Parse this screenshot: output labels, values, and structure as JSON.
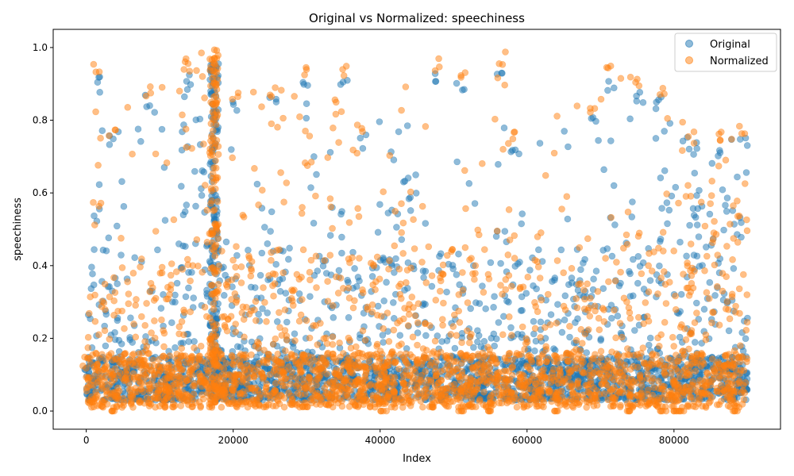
{
  "chart_data": {
    "type": "scatter",
    "title": "Original vs Normalized: speechiness",
    "xlabel": "Index",
    "ylabel": "speechiness",
    "xlim": [
      -4500,
      94500
    ],
    "ylim": [
      -0.05,
      1.05
    ],
    "xticks": [
      0,
      20000,
      40000,
      60000,
      80000
    ],
    "xtick_labels": [
      "0",
      "20000",
      "40000",
      "60000",
      "80000"
    ],
    "yticks": [
      0.0,
      0.2,
      0.4,
      0.6,
      0.8,
      1.0
    ],
    "ytick_labels": [
      "0.0",
      "0.2",
      "0.4",
      "0.6",
      "0.8",
      "1.0"
    ],
    "grid": false,
    "legend_position": "top-right",
    "n_points": 90000,
    "marker_alpha": 0.5,
    "series": [
      {
        "name": "Original",
        "color": "#1f77b4",
        "min": 0.022,
        "max": 0.965,
        "band_low": 0.03,
        "band_high": 0.15,
        "dense_regions": [
          [
            1000,
            2000
          ],
          [
            13000,
            18000
          ],
          [
            33000,
            35500
          ],
          [
            41000,
            44500
          ],
          [
            55500,
            57000
          ],
          [
            71000,
            72000
          ],
          [
            78000,
            79500
          ],
          [
            81000,
            89500
          ]
        ],
        "upper_envelope": [
          {
            "x": 0,
            "y": 0.14
          },
          {
            "x": 1500,
            "y": 0.92
          },
          {
            "x": 3500,
            "y": 0.76
          },
          {
            "x": 8500,
            "y": 0.87
          },
          {
            "x": 13800,
            "y": 0.93
          },
          {
            "x": 17500,
            "y": 0.965
          },
          {
            "x": 20300,
            "y": 0.86
          },
          {
            "x": 25300,
            "y": 0.87
          },
          {
            "x": 30000,
            "y": 0.91
          },
          {
            "x": 35000,
            "y": 0.91
          },
          {
            "x": 37500,
            "y": 0.76
          },
          {
            "x": 48000,
            "y": 0.94
          },
          {
            "x": 51000,
            "y": 0.91
          },
          {
            "x": 56500,
            "y": 0.95
          },
          {
            "x": 58000,
            "y": 0.75
          },
          {
            "x": 69000,
            "y": 0.83
          },
          {
            "x": 71300,
            "y": 0.92
          },
          {
            "x": 75000,
            "y": 0.89
          },
          {
            "x": 78200,
            "y": 0.87
          },
          {
            "x": 82500,
            "y": 0.74
          },
          {
            "x": 86500,
            "y": 0.74
          },
          {
            "x": 89500,
            "y": 0.76
          }
        ]
      },
      {
        "name": "Normalized",
        "color": "#ff7f0e",
        "min": 0.0,
        "max": 1.0,
        "band_low": 0.01,
        "band_high": 0.16,
        "dense_regions": [
          [
            1000,
            2000
          ],
          [
            13000,
            18000
          ],
          [
            33000,
            35500
          ],
          [
            41000,
            44500
          ],
          [
            55500,
            57000
          ],
          [
            71000,
            72000
          ],
          [
            78000,
            79500
          ],
          [
            81000,
            89500
          ]
        ],
        "upper_envelope": [
          {
            "x": 0,
            "y": 0.15
          },
          {
            "x": 1500,
            "y": 0.96
          },
          {
            "x": 3500,
            "y": 0.79
          },
          {
            "x": 8500,
            "y": 0.9
          },
          {
            "x": 13800,
            "y": 0.97
          },
          {
            "x": 17500,
            "y": 1.0
          },
          {
            "x": 20300,
            "y": 0.89
          },
          {
            "x": 25300,
            "y": 0.9
          },
          {
            "x": 30000,
            "y": 0.95
          },
          {
            "x": 35000,
            "y": 0.95
          },
          {
            "x": 37500,
            "y": 0.79
          },
          {
            "x": 48000,
            "y": 0.97
          },
          {
            "x": 51000,
            "y": 0.95
          },
          {
            "x": 56500,
            "y": 0.99
          },
          {
            "x": 58000,
            "y": 0.77
          },
          {
            "x": 69000,
            "y": 0.86
          },
          {
            "x": 71300,
            "y": 0.96
          },
          {
            "x": 75000,
            "y": 0.92
          },
          {
            "x": 78200,
            "y": 0.9
          },
          {
            "x": 82500,
            "y": 0.77
          },
          {
            "x": 86500,
            "y": 0.77
          },
          {
            "x": 89500,
            "y": 0.79
          }
        ],
        "zero_clusters": [
          3500,
          40500,
          51000,
          55000,
          64000,
          74000,
          78500,
          80000,
          81000,
          88500
        ]
      }
    ]
  }
}
